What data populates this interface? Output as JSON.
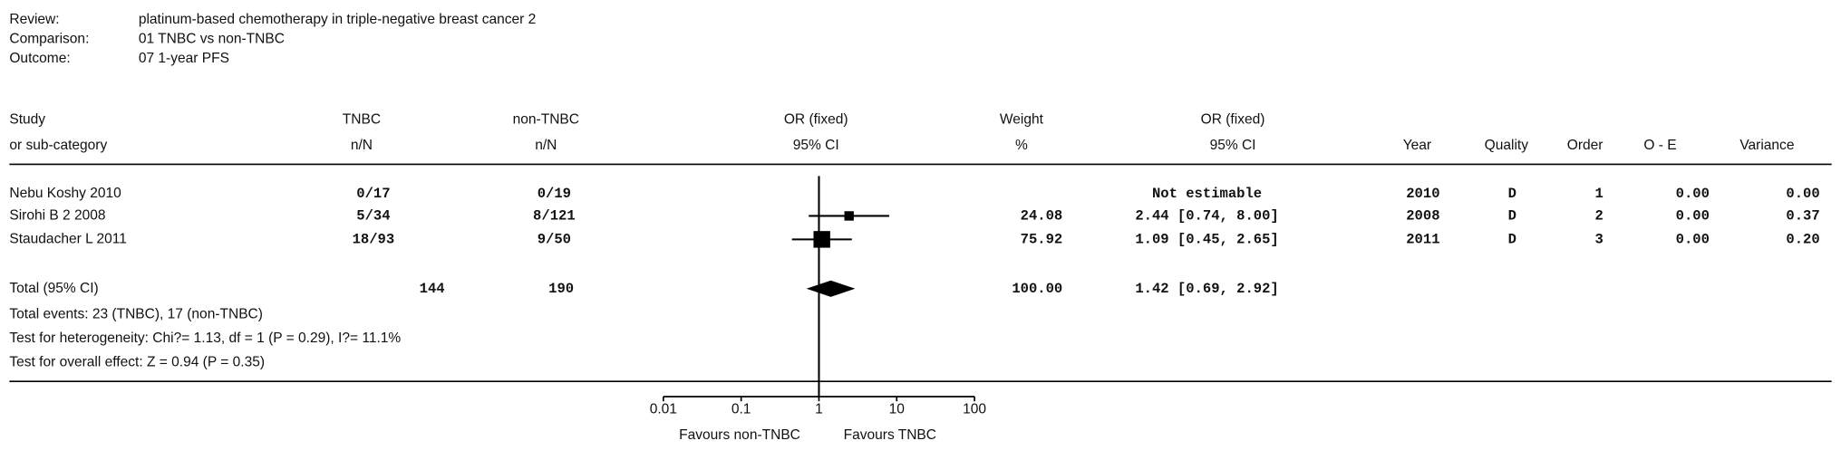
{
  "chart_data": {
    "type": "forest",
    "meta": [
      {
        "label": "Review:",
        "value": "platinum-based chemotherapy in triple-negative breast cancer 2"
      },
      {
        "label": "Comparison:",
        "value": "01 TNBC vs non-TNBC"
      },
      {
        "label": "Outcome:",
        "value": "07 1-year PFS"
      }
    ],
    "columns": [
      {
        "line1": "Study",
        "line2": "or sub-category"
      },
      {
        "line1": "TNBC",
        "line2": "n/N"
      },
      {
        "line1": "non-TNBC",
        "line2": "n/N"
      },
      {
        "line1": "OR (fixed)",
        "line2": "95% CI"
      },
      {
        "line1": "Weight",
        "line2": "%"
      },
      {
        "line1": "OR (fixed)",
        "line2": "95% CI"
      },
      {
        "line1": "Year"
      },
      {
        "line1": "Quality"
      },
      {
        "line1": "Order"
      },
      {
        "line1": "O - E"
      },
      {
        "line1": "Variance"
      }
    ],
    "studies": [
      {
        "name": "Nebu Koshy 2010",
        "tnbc": "0/17",
        "non_tnbc": "0/19",
        "weight": null,
        "or": null,
        "ci_low": null,
        "ci_high": null,
        "or_label": "Not estimable",
        "year": 2010,
        "quality": "D",
        "order": 1,
        "o_e": "0.00",
        "variance": "0.00"
      },
      {
        "name": "Sirohi B 2 2008",
        "tnbc": "5/34",
        "non_tnbc": "8/121",
        "weight": 24.08,
        "or": 2.44,
        "ci_low": 0.74,
        "ci_high": 8.0,
        "or_label": "2.44 [0.74, 8.00]",
        "year": 2008,
        "quality": "D",
        "order": 2,
        "o_e": "0.00",
        "variance": "0.37"
      },
      {
        "name": "Staudacher L 2011",
        "tnbc": "18/93",
        "non_tnbc": "9/50",
        "weight": 75.92,
        "or": 1.09,
        "ci_low": 0.45,
        "ci_high": 2.65,
        "or_label": "1.09 [0.45, 2.65]",
        "year": 2011,
        "quality": "D",
        "order": 3,
        "o_e": "0.00",
        "variance": "0.20"
      }
    ],
    "total": {
      "name": "Total (95% CI)",
      "tnbc": 144,
      "non_tnbc": 190,
      "weight": 100,
      "weight_label": "100.00",
      "or": 1.42,
      "ci_low": 0.69,
      "ci_high": 2.92,
      "or_label": "1.42 [0.69, 2.92]"
    },
    "notes": [
      "Total events: 23 (TNBC), 17 (non-TNBC)",
      "Test for heterogeneity: Chi?= 1.13, df = 1 (P = 0.29), I?= 11.1%",
      "Test for overall effect: Z = 0.94 (P = 0.35)"
    ],
    "xscale": "log",
    "xlim": [
      0.01,
      100
    ],
    "xticks": [
      0.01,
      0.1,
      1,
      10,
      100
    ],
    "reference_line": 1,
    "favours_left": "Favours non-TNBC",
    "favours_right": "Favours TNBC",
    "color": "#000000"
  }
}
